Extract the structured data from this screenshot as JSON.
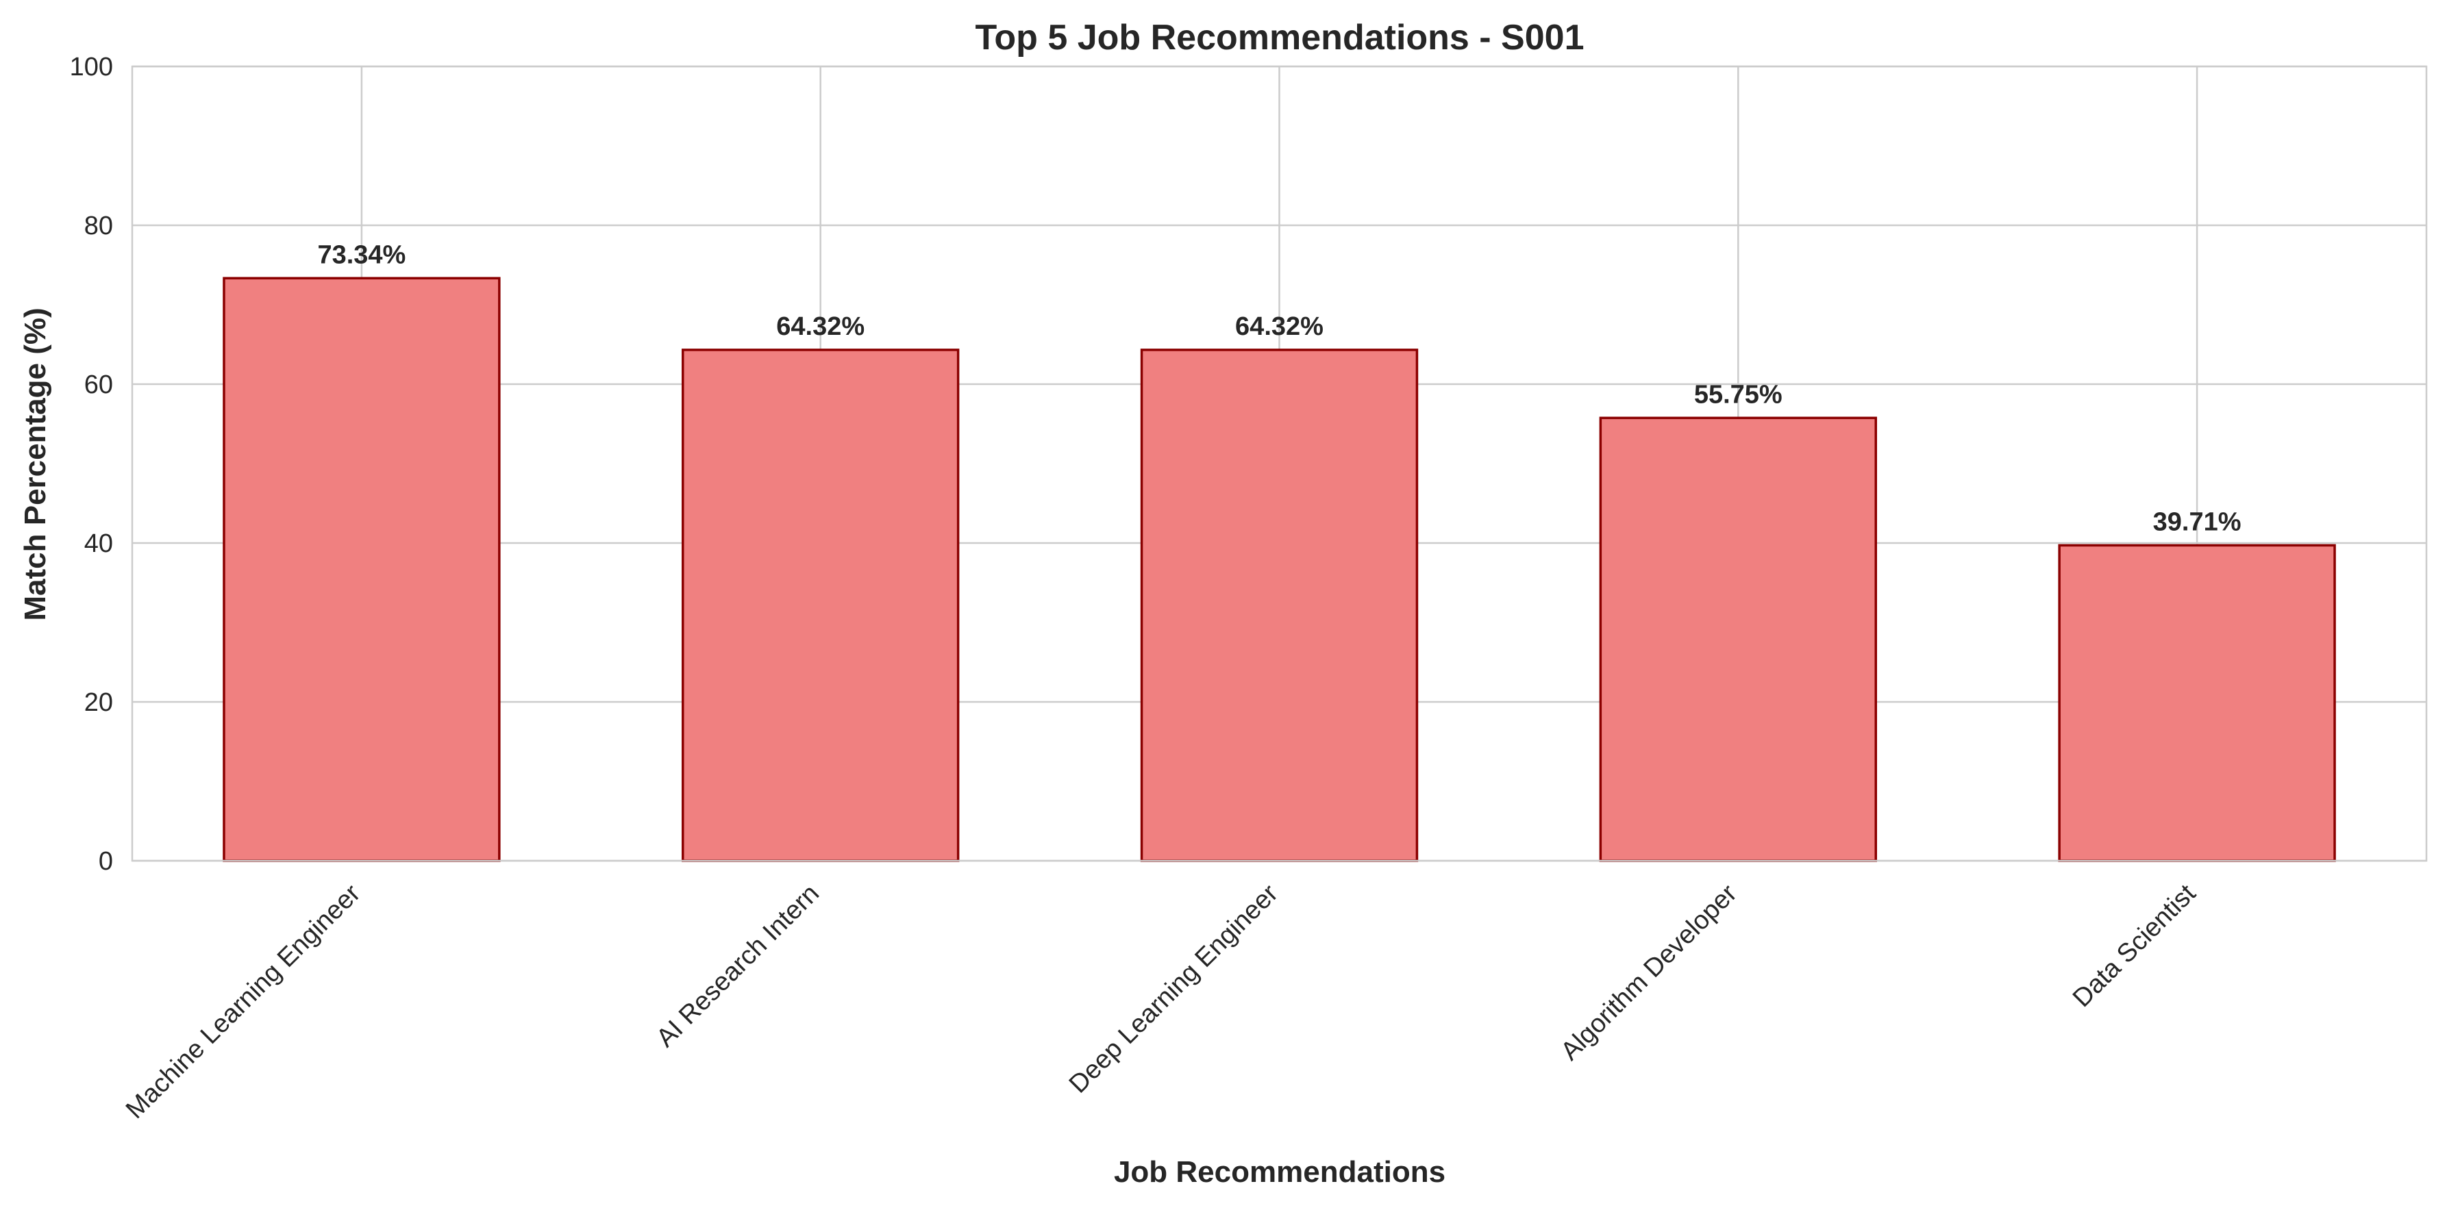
{
  "chart_data": {
    "type": "bar",
    "title": "Top 5 Job Recommendations - S001",
    "xlabel": "Job Recommendations",
    "ylabel": "Match Percentage (%)",
    "categories": [
      "Machine Learning Engineer",
      "AI Research Intern",
      "Deep Learning Engineer",
      "Algorithm Developer",
      "Data Scientist"
    ],
    "values": [
      73.34,
      64.32,
      64.32,
      55.75,
      39.71
    ],
    "value_labels": [
      "73.34%",
      "64.32%",
      "64.32%",
      "55.75%",
      "39.71%"
    ],
    "ylim": [
      0,
      100
    ],
    "yticks": [
      0,
      20,
      40,
      60,
      80,
      100
    ],
    "ytick_labels": [
      "0",
      "20",
      "40",
      "60",
      "80",
      "100"
    ],
    "grid": true,
    "bar_color": "#f08080",
    "bar_edge_color": "#8b0000",
    "grid_color": "#cccccc",
    "spine_color": "#cccccc",
    "text_color": "#262626"
  }
}
